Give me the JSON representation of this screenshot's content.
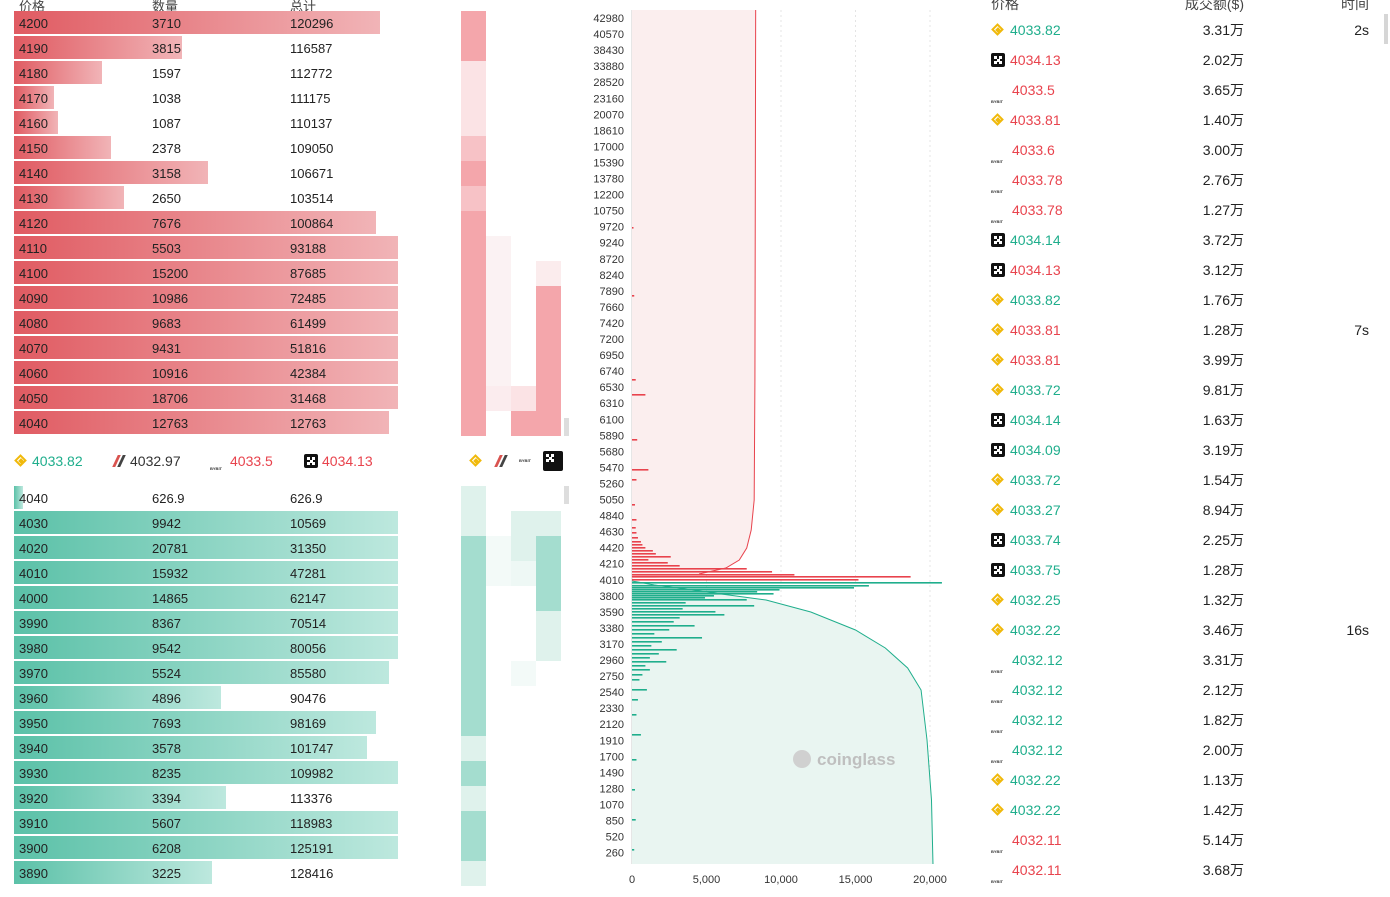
{
  "orderbook": {
    "headers": {
      "price": "价格",
      "qty": "数量",
      "total": "总计"
    },
    "asks": [
      {
        "price": "4200",
        "qty": "3710",
        "total": "120296",
        "depth": 0.83
      },
      {
        "price": "4190",
        "qty": "3815",
        "total": "116587",
        "depth": 0.38
      },
      {
        "price": "4180",
        "qty": "1597",
        "total": "112772",
        "depth": 0.2
      },
      {
        "price": "4170",
        "qty": "1038",
        "total": "111175",
        "depth": 0.09
      },
      {
        "price": "4160",
        "qty": "1087",
        "total": "110137",
        "depth": 0.1
      },
      {
        "price": "4150",
        "qty": "2378",
        "total": "109050",
        "depth": 0.22
      },
      {
        "price": "4140",
        "qty": "3158",
        "total": "106671",
        "depth": 0.44
      },
      {
        "price": "4130",
        "qty": "2650",
        "total": "103514",
        "depth": 0.25
      },
      {
        "price": "4120",
        "qty": "7676",
        "total": "100864",
        "depth": 0.82
      },
      {
        "price": "4110",
        "qty": "5503",
        "total": "93188",
        "depth": 0.87
      },
      {
        "price": "4100",
        "qty": "15200",
        "total": "87685",
        "depth": 0.87
      },
      {
        "price": "4090",
        "qty": "10986",
        "total": "72485",
        "depth": 0.87
      },
      {
        "price": "4080",
        "qty": "9683",
        "total": "61499",
        "depth": 0.87
      },
      {
        "price": "4070",
        "qty": "9431",
        "total": "51816",
        "depth": 0.87
      },
      {
        "price": "4060",
        "qty": "10916",
        "total": "42384",
        "depth": 0.87
      },
      {
        "price": "4050",
        "qty": "18706",
        "total": "31468",
        "depth": 0.87
      },
      {
        "price": "4040",
        "qty": "12763",
        "total": "12763",
        "depth": 0.85
      }
    ],
    "bids": [
      {
        "price": "4040",
        "qty": "626.9",
        "total": "626.9",
        "depth": 0.02
      },
      {
        "price": "4030",
        "qty": "9942",
        "total": "10569",
        "depth": 0.87
      },
      {
        "price": "4020",
        "qty": "20781",
        "total": "31350",
        "depth": 0.87
      },
      {
        "price": "4010",
        "qty": "15932",
        "total": "47281",
        "depth": 0.87
      },
      {
        "price": "4000",
        "qty": "14865",
        "total": "62147",
        "depth": 0.87
      },
      {
        "price": "3990",
        "qty": "8367",
        "total": "70514",
        "depth": 0.87
      },
      {
        "price": "3980",
        "qty": "9542",
        "total": "80056",
        "depth": 0.87
      },
      {
        "price": "3970",
        "qty": "5524",
        "total": "85580",
        "depth": 0.85
      },
      {
        "price": "3960",
        "qty": "4896",
        "total": "90476",
        "depth": 0.47
      },
      {
        "price": "3950",
        "qty": "7693",
        "total": "98169",
        "depth": 0.82
      },
      {
        "price": "3940",
        "qty": "3578",
        "total": "101747",
        "depth": 0.8
      },
      {
        "price": "3930",
        "qty": "8235",
        "total": "109982",
        "depth": 0.87
      },
      {
        "price": "3920",
        "qty": "3394",
        "total": "113376",
        "depth": 0.48
      },
      {
        "price": "3910",
        "qty": "5607",
        "total": "118983",
        "depth": 0.87
      },
      {
        "price": "3900",
        "qty": "6208",
        "total": "125191",
        "depth": 0.87
      },
      {
        "price": "3890",
        "qty": "3225",
        "total": "128416",
        "depth": 0.45
      }
    ]
  },
  "exchange_prices": [
    {
      "exchange_icon": "binance-icon",
      "price": "4033.82",
      "trend": "up"
    },
    {
      "exchange_icon": "ftx-icon",
      "price": "4032.97",
      "trend": "neutral"
    },
    {
      "exchange_icon": "bybit-icon",
      "price": "4033.5",
      "trend": "down"
    },
    {
      "exchange_icon": "okx-icon",
      "price": "4034.13",
      "trend": "down"
    }
  ],
  "heat_icons": [
    "binance-icon",
    "ftx-icon",
    "bybit-icon",
    "okx-icon"
  ],
  "depth_chart": {
    "watermark": "coinglass",
    "y_ticks": [
      "42980",
      "40570",
      "38430",
      "33880",
      "28520",
      "23160",
      "20070",
      "18610",
      "17000",
      "15390",
      "13780",
      "12200",
      "10750",
      "9720",
      "9240",
      "8720",
      "8240",
      "7890",
      "7660",
      "7420",
      "7200",
      "6950",
      "6740",
      "6530",
      "6310",
      "6100",
      "5890",
      "5680",
      "5470",
      "5260",
      "5050",
      "4840",
      "4630",
      "4420",
      "4210",
      "4010",
      "3800",
      "3590",
      "3380",
      "3170",
      "2960",
      "2750",
      "2540",
      "2330",
      "2120",
      "1910",
      "1700",
      "1490",
      "1280",
      "1070",
      "850",
      "520",
      "260"
    ],
    "x_ticks": [
      "0",
      "5,000",
      "10,000",
      "15,000",
      "20,000"
    ],
    "colors": {
      "ask": "#e8434d",
      "bid": "#1fae8c",
      "ask_fill": "#fbeeee",
      "bid_fill": "#e9f5f1"
    }
  },
  "trades": {
    "headers": {
      "price": "价格",
      "amount": "成交额($)",
      "time": "时间"
    },
    "rows": [
      {
        "icon": "binance-icon",
        "price": "4033.82",
        "side": "up",
        "amount": "3.31万",
        "time": "2s"
      },
      {
        "icon": "okx-icon",
        "price": "4034.13",
        "side": "down",
        "amount": "2.02万",
        "time": ""
      },
      {
        "icon": "bybit-icon",
        "price": "4033.5",
        "side": "down",
        "amount": "3.65万",
        "time": ""
      },
      {
        "icon": "binance-icon",
        "price": "4033.81",
        "side": "down",
        "amount": "1.40万",
        "time": ""
      },
      {
        "icon": "bybit-icon",
        "price": "4033.6",
        "side": "down",
        "amount": "3.00万",
        "time": ""
      },
      {
        "icon": "bybit-icon",
        "price": "4033.78",
        "side": "down",
        "amount": "2.76万",
        "time": ""
      },
      {
        "icon": "bybit-icon",
        "price": "4033.78",
        "side": "down",
        "amount": "1.27万",
        "time": ""
      },
      {
        "icon": "okx-icon",
        "price": "4034.14",
        "side": "up",
        "amount": "3.72万",
        "time": ""
      },
      {
        "icon": "okx-icon",
        "price": "4034.13",
        "side": "down",
        "amount": "3.12万",
        "time": ""
      },
      {
        "icon": "binance-icon",
        "price": "4033.82",
        "side": "up",
        "amount": "1.76万",
        "time": ""
      },
      {
        "icon": "binance-icon",
        "price": "4033.81",
        "side": "down",
        "amount": "1.28万",
        "time": "7s"
      },
      {
        "icon": "binance-icon",
        "price": "4033.81",
        "side": "down",
        "amount": "3.99万",
        "time": ""
      },
      {
        "icon": "binance-icon",
        "price": "4033.72",
        "side": "up",
        "amount": "9.81万",
        "time": ""
      },
      {
        "icon": "okx-icon",
        "price": "4034.14",
        "side": "up",
        "amount": "1.63万",
        "time": ""
      },
      {
        "icon": "okx-icon",
        "price": "4034.09",
        "side": "up",
        "amount": "3.19万",
        "time": ""
      },
      {
        "icon": "binance-icon",
        "price": "4033.72",
        "side": "up",
        "amount": "1.54万",
        "time": ""
      },
      {
        "icon": "binance-icon",
        "price": "4033.27",
        "side": "up",
        "amount": "8.94万",
        "time": ""
      },
      {
        "icon": "okx-icon",
        "price": "4033.74",
        "side": "up",
        "amount": "2.25万",
        "time": ""
      },
      {
        "icon": "okx-icon",
        "price": "4033.75",
        "side": "up",
        "amount": "1.28万",
        "time": ""
      },
      {
        "icon": "binance-icon",
        "price": "4032.25",
        "side": "up",
        "amount": "1.32万",
        "time": ""
      },
      {
        "icon": "binance-icon",
        "price": "4032.22",
        "side": "up",
        "amount": "3.46万",
        "time": "16s"
      },
      {
        "icon": "bybit-icon",
        "price": "4032.12",
        "side": "up",
        "amount": "3.31万",
        "time": ""
      },
      {
        "icon": "bybit-icon",
        "price": "4032.12",
        "side": "up",
        "amount": "2.12万",
        "time": ""
      },
      {
        "icon": "bybit-icon",
        "price": "4032.12",
        "side": "up",
        "amount": "1.82万",
        "time": ""
      },
      {
        "icon": "bybit-icon",
        "price": "4032.12",
        "side": "up",
        "amount": "2.00万",
        "time": ""
      },
      {
        "icon": "binance-icon",
        "price": "4032.22",
        "side": "up",
        "amount": "1.13万",
        "time": ""
      },
      {
        "icon": "binance-icon",
        "price": "4032.22",
        "side": "up",
        "amount": "1.42万",
        "time": ""
      },
      {
        "icon": "bybit-icon",
        "price": "4032.11",
        "side": "down",
        "amount": "5.14万",
        "time": ""
      },
      {
        "icon": "bybit-icon",
        "price": "4032.11",
        "side": "down",
        "amount": "3.68万",
        "time": ""
      }
    ]
  }
}
